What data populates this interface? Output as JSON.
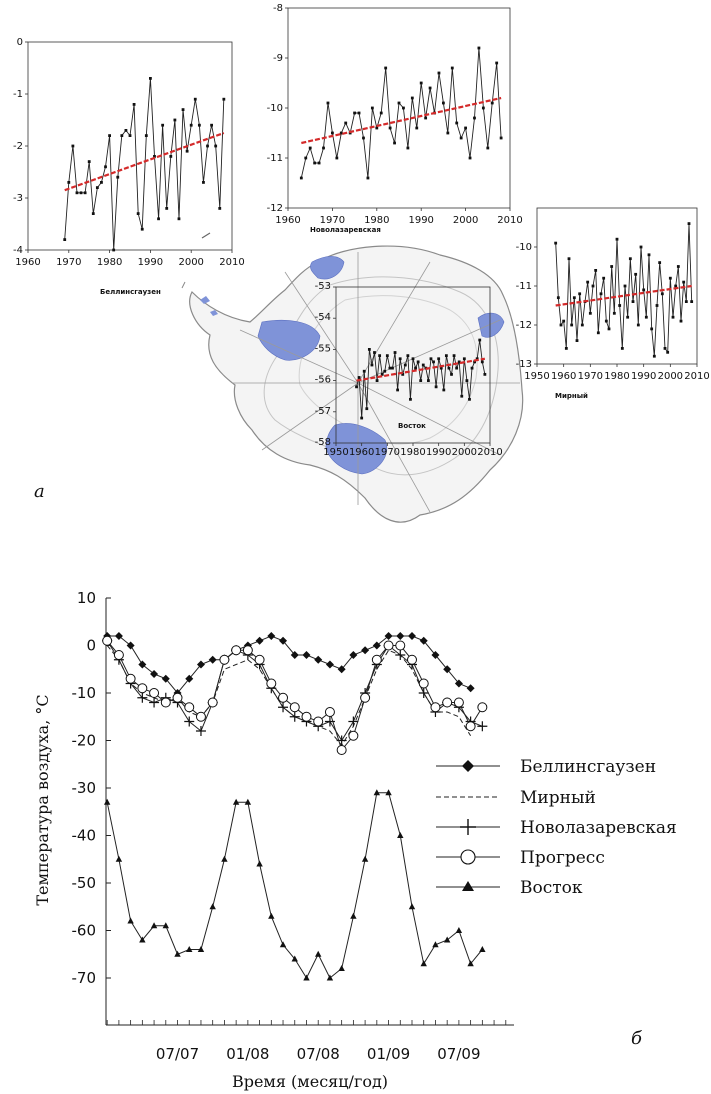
{
  "panel_labels": {
    "a": "а",
    "b": "б"
  },
  "chart_data": [
    {
      "id": "bellingshausen",
      "type": "line",
      "station": "Беллинсгаузен",
      "xlim": [
        1960,
        2010
      ],
      "ylim": [
        -4,
        0
      ],
      "xticks": [
        1960,
        1970,
        1980,
        1990,
        2000,
        2010
      ],
      "yticks": [
        0,
        -1,
        -2,
        -3,
        -4
      ],
      "trend": [
        [
          1969,
          -2.85
        ],
        [
          2008,
          -1.75
        ]
      ],
      "x": [
        1969,
        1970,
        1971,
        1972,
        1973,
        1974,
        1975,
        1976,
        1977,
        1978,
        1979,
        1980,
        1981,
        1982,
        1983,
        1984,
        1985,
        1986,
        1987,
        1988,
        1989,
        1990,
        1991,
        1992,
        1993,
        1994,
        1995,
        1996,
        1997,
        1998,
        1999,
        2000,
        2001,
        2002,
        2003,
        2004,
        2005,
        2006,
        2007,
        2008
      ],
      "y": [
        -3.8,
        -2.7,
        -2.0,
        -2.9,
        -2.9,
        -2.9,
        -2.3,
        -3.3,
        -2.8,
        -2.7,
        -2.4,
        -1.8,
        -4.0,
        -2.6,
        -1.8,
        -1.7,
        -1.8,
        -1.2,
        -3.3,
        -3.6,
        -1.8,
        -0.7,
        -2.2,
        -3.4,
        -1.6,
        -3.2,
        -2.2,
        -1.5,
        -3.4,
        -1.3,
        -2.1,
        -1.6,
        -1.1,
        -1.6,
        -2.7,
        -2.0,
        -1.6,
        -2.0,
        -3.2,
        -1.1
      ]
    },
    {
      "id": "novolazarevskaya",
      "type": "line",
      "station": "Новолазаревская",
      "xlim": [
        1960,
        2010
      ],
      "ylim": [
        -12,
        -8
      ],
      "xticks": [
        1960,
        1970,
        1980,
        1990,
        2000,
        2010
      ],
      "yticks": [
        -8,
        -9,
        -10,
        -11,
        -12
      ],
      "trend": [
        [
          1963,
          -10.7
        ],
        [
          2008,
          -9.8
        ]
      ],
      "x": [
        1963,
        1964,
        1965,
        1966,
        1967,
        1968,
        1969,
        1970,
        1971,
        1972,
        1973,
        1974,
        1975,
        1976,
        1977,
        1978,
        1979,
        1980,
        1981,
        1982,
        1983,
        1984,
        1985,
        1986,
        1987,
        1988,
        1989,
        1990,
        1991,
        1992,
        1993,
        1994,
        1995,
        1996,
        1997,
        1998,
        1999,
        2000,
        2001,
        2002,
        2003,
        2004,
        2005,
        2006,
        2007,
        2008
      ],
      "y": [
        -11.4,
        -11.0,
        -10.8,
        -11.1,
        -11.1,
        -10.8,
        -9.9,
        -10.5,
        -11.0,
        -10.5,
        -10.3,
        -10.5,
        -10.1,
        -10.1,
        -10.6,
        -11.4,
        -10.0,
        -10.4,
        -10.1,
        -9.2,
        -10.4,
        -10.7,
        -9.9,
        -10.0,
        -10.8,
        -9.8,
        -10.4,
        -9.5,
        -10.2,
        -9.6,
        -10.1,
        -9.3,
        -9.9,
        -10.5,
        -9.2,
        -10.3,
        -10.6,
        -10.4,
        -11.0,
        -10.2,
        -8.8,
        -10.0,
        -10.8,
        -9.9,
        -9.1,
        -10.6
      ]
    },
    {
      "id": "mirny",
      "type": "line",
      "station": "Мирный",
      "xlim": [
        1950,
        2010
      ],
      "ylim": [
        -13,
        -9
      ],
      "xticks": [
        1950,
        1960,
        1970,
        1980,
        1990,
        2000,
        2010
      ],
      "yticks": [
        -10,
        -11,
        -12,
        -13
      ],
      "trend": [
        [
          1957,
          -11.5
        ],
        [
          2008,
          -11.0
        ]
      ],
      "x": [
        1957,
        1958,
        1959,
        1960,
        1961,
        1962,
        1963,
        1964,
        1965,
        1966,
        1967,
        1968,
        1969,
        1970,
        1971,
        1972,
        1973,
        1974,
        1975,
        1976,
        1977,
        1978,
        1979,
        1980,
        1981,
        1982,
        1983,
        1984,
        1985,
        1986,
        1987,
        1988,
        1989,
        1990,
        1991,
        1992,
        1993,
        1994,
        1995,
        1996,
        1997,
        1998,
        1999,
        2000,
        2001,
        2002,
        2003,
        2004,
        2005,
        2006,
        2007,
        2008
      ],
      "y": [
        -9.9,
        -11.3,
        -12.0,
        -11.9,
        -12.6,
        -10.3,
        -12.0,
        -11.3,
        -12.4,
        -11.2,
        -12.0,
        -11.4,
        -10.9,
        -11.7,
        -11.0,
        -10.6,
        -12.2,
        -11.2,
        -10.8,
        -11.9,
        -12.1,
        -10.5,
        -11.7,
        -9.8,
        -11.5,
        -12.6,
        -11.0,
        -11.8,
        -10.3,
        -11.4,
        -10.7,
        -12.0,
        -10.0,
        -11.1,
        -11.8,
        -10.2,
        -12.1,
        -12.8,
        -11.5,
        -10.4,
        -11.2,
        -12.6,
        -12.7,
        -10.8,
        -11.8,
        -11.0,
        -10.5,
        -11.9,
        -10.9,
        -11.4,
        -9.4,
        -11.4
      ]
    },
    {
      "id": "vostok",
      "type": "line",
      "station": "Восток",
      "xlim": [
        1950,
        2010
      ],
      "ylim": [
        -58,
        -53
      ],
      "xticks": [
        1950,
        1960,
        1970,
        1980,
        1990,
        2000,
        2010
      ],
      "yticks": [
        -53,
        -54,
        -55,
        -56,
        -57,
        -58
      ],
      "trend": [
        [
          1958,
          -56.0
        ],
        [
          2008,
          -55.3
        ]
      ],
      "x": [
        1958,
        1959,
        1960,
        1961,
        1962,
        1963,
        1964,
        1965,
        1966,
        1967,
        1968,
        1969,
        1970,
        1971,
        1972,
        1973,
        1974,
        1975,
        1976,
        1977,
        1978,
        1979,
        1980,
        1981,
        1982,
        1983,
        1984,
        1985,
        1986,
        1987,
        1988,
        1989,
        1990,
        1991,
        1992,
        1993,
        1994,
        1995,
        1996,
        1997,
        1998,
        1999,
        2000,
        2001,
        2002,
        2003,
        2004,
        2005,
        2006,
        2007,
        2008
      ],
      "y": [
        -56.2,
        -55.9,
        -57.2,
        -55.7,
        -56.9,
        -55.0,
        -55.5,
        -55.1,
        -56.0,
        -55.2,
        -55.8,
        -55.7,
        -55.2,
        -55.6,
        -55.6,
        -55.1,
        -56.3,
        -55.3,
        -55.8,
        -55.5,
        -55.2,
        -56.6,
        -55.3,
        -55.6,
        -55.4,
        -56.0,
        -55.5,
        -55.6,
        -56.0,
        -55.3,
        -55.4,
        -56.2,
        -55.3,
        -55.6,
        -56.3,
        -55.2,
        -55.6,
        -55.8,
        -55.2,
        -55.6,
        -55.4,
        -56.5,
        -55.3,
        -56.0,
        -56.6,
        -55.6,
        -55.4,
        -55.3,
        -54.7,
        -55.4,
        -55.8
      ]
    },
    {
      "id": "monthly",
      "type": "line",
      "xlabel": "Время (месяц/год)",
      "ylabel": "Температура воздуха, °С",
      "ylim": [
        -70,
        10
      ],
      "yticks": [
        10,
        0,
        -10,
        -20,
        -30,
        -40,
        -50,
        -60,
        -70
      ],
      "xlim": [
        1,
        33
      ],
      "xticks": [
        {
          "label": "07/07",
          "at": 7
        },
        {
          "label": "01/08",
          "at": 13
        },
        {
          "label": "07/08",
          "at": 19
        },
        {
          "label": "01/09",
          "at": 25
        },
        {
          "label": "07/09",
          "at": 31
        }
      ],
      "legend": {
        "position": "right"
      },
      "series": [
        {
          "name": "Беллинсгаузен",
          "marker": "diamond",
          "x": [
            1,
            2,
            3,
            4,
            5,
            6,
            7,
            8,
            9,
            10,
            11,
            12,
            13,
            14,
            15,
            16,
            17,
            18,
            19,
            20,
            21,
            22,
            23,
            24,
            25,
            26,
            27,
            28,
            29,
            30,
            31,
            32
          ],
          "values": [
            2,
            2,
            0,
            -4,
            -6,
            -7,
            -10,
            -7,
            -4,
            -3,
            -3,
            -1,
            0,
            1,
            2,
            1,
            -2,
            -2,
            -3,
            -4,
            -5,
            -2,
            -1,
            0,
            2,
            2,
            2,
            1,
            -2,
            -5,
            -8,
            -9
          ]
        },
        {
          "name": "Мирный",
          "marker": "none",
          "dash": "5,3",
          "x": [
            1,
            2,
            3,
            4,
            5,
            6,
            7,
            8,
            9,
            10,
            11,
            12,
            13,
            14,
            15,
            16,
            17,
            18,
            19,
            20,
            21,
            22,
            23,
            24,
            25,
            26,
            27,
            28,
            29,
            30,
            31,
            32
          ],
          "values": [
            0,
            -3,
            -8,
            -10,
            -11,
            -12,
            -11,
            -14,
            -15,
            -12,
            -5,
            -4,
            -3,
            -5,
            -9,
            -13,
            -15,
            -16,
            -17,
            -18,
            -21,
            -17,
            -11,
            -5,
            -1,
            -2,
            -5,
            -10,
            -14,
            -14,
            -15,
            -19
          ]
        },
        {
          "name": "Новолазаревская",
          "marker": "plus",
          "x": [
            1,
            2,
            3,
            4,
            5,
            6,
            7,
            8,
            9,
            10,
            11,
            12,
            13,
            14,
            15,
            16,
            17,
            18,
            19,
            20,
            21,
            22,
            23,
            24,
            25,
            26,
            27,
            28,
            29,
            30,
            31,
            32,
            33
          ],
          "values": [
            1,
            -3,
            -8,
            -11,
            -12,
            -11,
            -12,
            -16,
            -18,
            -12,
            -3,
            -1,
            -2,
            -4,
            -9,
            -13,
            -15,
            -16,
            -17,
            -16,
            -20,
            -16,
            -10,
            -4,
            0,
            -2,
            -4,
            -10,
            -14,
            -12,
            -13,
            -16,
            -17
          ]
        },
        {
          "name": "Прогресс",
          "marker": "circle",
          "x": [
            1,
            2,
            3,
            4,
            5,
            6,
            7,
            8,
            9,
            10,
            11,
            12,
            13,
            14,
            15,
            16,
            17,
            18,
            19,
            20,
            21,
            22,
            23,
            24,
            25,
            26,
            27,
            28,
            29,
            30,
            31,
            32,
            33
          ],
          "values": [
            1,
            -2,
            -7,
            -9,
            -10,
            -12,
            -11,
            -13,
            -15,
            -12,
            -3,
            -1,
            -1,
            -3,
            -8,
            -11,
            -13,
            -15,
            -16,
            -14,
            -22,
            -19,
            -11,
            -3,
            0,
            0,
            -3,
            -8,
            -13,
            -12,
            -12,
            -17,
            -13
          ]
        },
        {
          "name": "Восток",
          "marker": "triangle",
          "x": [
            1,
            2,
            3,
            4,
            5,
            6,
            7,
            8,
            9,
            10,
            11,
            12,
            13,
            14,
            15,
            16,
            17,
            18,
            19,
            20,
            21,
            22,
            23,
            24,
            25,
            26,
            27,
            28,
            29,
            30,
            31,
            32,
            33
          ],
          "values": [
            -33,
            -45,
            -58,
            -62,
            -59,
            -59,
            -65,
            -64,
            -64,
            -55,
            -45,
            -33,
            -33,
            -46,
            -57,
            -63,
            -66,
            -70,
            -65,
            -70,
            -68,
            -57,
            -45,
            -31,
            -31,
            -40,
            -55,
            -67,
            -63,
            -62,
            -60,
            -67,
            -64
          ]
        }
      ]
    }
  ]
}
